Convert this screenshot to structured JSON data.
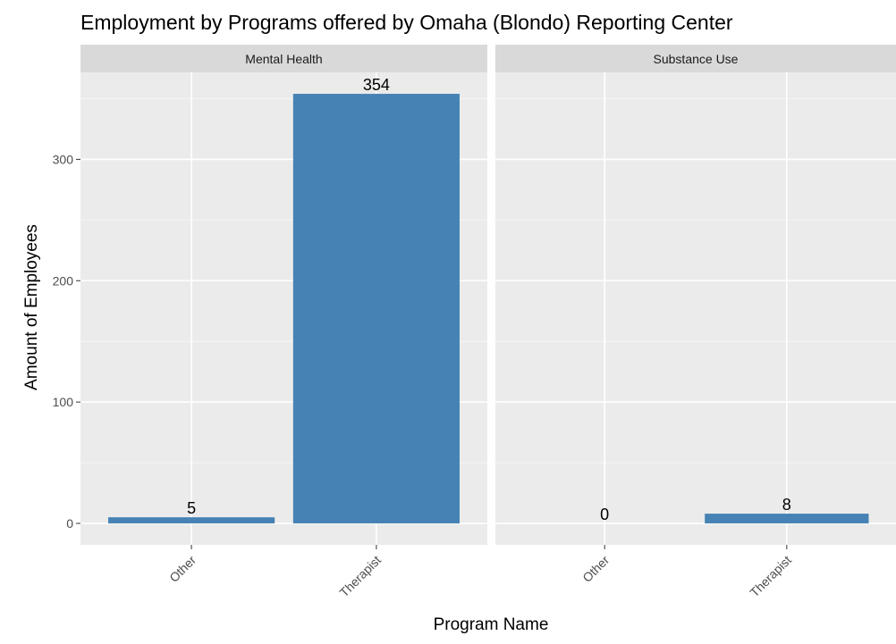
{
  "colors": {
    "bar": "#4682b4",
    "panel_background": "#ebebeb",
    "strip_background": "#d9d9d9",
    "grid_major": "#ffffff",
    "grid_minor": "#f5f5f5"
  },
  "chart_data": {
    "type": "bar",
    "title": "Employment by Programs offered by Omaha (Blondo) Reporting Center",
    "xlabel": "Program Name",
    "ylabel": "Amount of Employees",
    "ylim": [
      -17.7,
      371.7
    ],
    "yticks": [
      0,
      100,
      200,
      300
    ],
    "grid": true,
    "legend": "none",
    "categories": [
      "Other",
      "Therapist"
    ],
    "panels": [
      {
        "name": "Mental Health",
        "values": [
          5,
          354
        ],
        "labels": [
          "5",
          "354"
        ]
      },
      {
        "name": "Substance Use",
        "values": [
          0,
          8
        ],
        "labels": [
          "0",
          "8"
        ]
      }
    ]
  }
}
